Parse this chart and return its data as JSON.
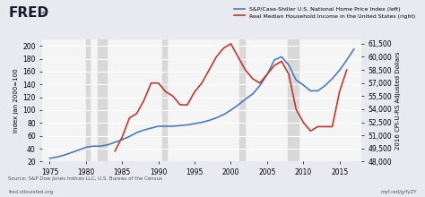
{
  "title_fred": "FRED",
  "legend1": "S&P/Case-Shiller U.S. National Home Price Index (left)",
  "legend2": "Real Median Household Income in the United States (right)",
  "xlabel": "",
  "ylabel_left": "Index Jan 2000=100",
  "ylabel_right": "2016 CPI-U-RS Adjusted Dollars",
  "source_text": "Source: S&P Dow Jones Indices LLC, U.S. Bureau of the Census",
  "footer_left": "fred.stlouisfed.org",
  "footer_right": "myf.red/g/fyZY",
  "bg_color": "#e8eaf0",
  "plot_bg": "#f5f5f5",
  "recession_color": "#d8d8d8",
  "line1_color": "#4a7bbf",
  "line2_color": "#c0392b",
  "ylim_left": [
    20,
    210
  ],
  "ylim_right": [
    48000,
    62000
  ],
  "yticks_left": [
    20,
    40,
    60,
    80,
    100,
    120,
    140,
    160,
    180,
    200
  ],
  "yticks_right": [
    48000,
    49500,
    51000,
    52500,
    54000,
    55500,
    57000,
    58500,
    60000,
    61500
  ],
  "ytick_labels_right": [
    "48,000",
    "49,500",
    "51,000",
    "52,500",
    "54,000",
    "55,500",
    "57,000",
    "58,500",
    "60,000",
    "61,500"
  ],
  "xticks": [
    1975,
    1980,
    1985,
    1990,
    1995,
    2000,
    2005,
    2010,
    2015
  ],
  "recession_bands": [
    [
      1980.0,
      1980.5
    ],
    [
      1981.6,
      1982.9
    ],
    [
      1990.5,
      1991.2
    ],
    [
      2001.2,
      2001.9
    ],
    [
      2007.9,
      2009.4
    ]
  ],
  "hpi_years": [
    1975,
    1976,
    1977,
    1978,
    1979,
    1980,
    1981,
    1982,
    1983,
    1984,
    1985,
    1986,
    1987,
    1988,
    1989,
    1990,
    1991,
    1992,
    1993,
    1994,
    1995,
    1996,
    1997,
    1998,
    1999,
    2000,
    2001,
    2002,
    2003,
    2004,
    2005,
    2006,
    2007,
    2008,
    2009,
    2010,
    2011,
    2012,
    2013,
    2014,
    2015,
    2016,
    2017
  ],
  "hpi_values": [
    25,
    27,
    30,
    34,
    38,
    42,
    44,
    44,
    46,
    50,
    54,
    59,
    65,
    69,
    72,
    75,
    75,
    75,
    76,
    77,
    79,
    81,
    84,
    88,
    93,
    100,
    108,
    117,
    125,
    138,
    155,
    178,
    183,
    170,
    147,
    139,
    130,
    130,
    138,
    149,
    162,
    178,
    195
  ],
  "income_years": [
    1984,
    1985,
    1986,
    1987,
    1988,
    1989,
    1990,
    1991,
    1992,
    1993,
    1994,
    1995,
    1996,
    1997,
    1998,
    1999,
    2000,
    2001,
    2002,
    2003,
    2004,
    2005,
    2006,
    2007,
    2008,
    2009,
    2010,
    2011,
    2012,
    2013,
    2014,
    2015,
    2016
  ],
  "income_values": [
    49200,
    50800,
    53000,
    53500,
    55000,
    57000,
    57000,
    56000,
    55500,
    54500,
    54500,
    56000,
    57000,
    58500,
    60000,
    61000,
    61500,
    60000,
    58500,
    57500,
    57000,
    58000,
    59000,
    59500,
    58000,
    54000,
    52500,
    51500,
    52000,
    52000,
    52000,
    56000,
    58500
  ],
  "xlim": [
    1974,
    2018
  ]
}
